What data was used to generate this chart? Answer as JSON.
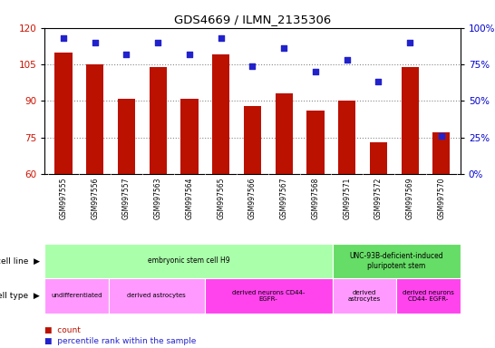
{
  "title": "GDS4669 / ILMN_2135306",
  "samples": [
    "GSM997555",
    "GSM997556",
    "GSM997557",
    "GSM997563",
    "GSM997564",
    "GSM997565",
    "GSM997566",
    "GSM997567",
    "GSM997568",
    "GSM997571",
    "GSM997572",
    "GSM997569",
    "GSM997570"
  ],
  "counts": [
    110,
    105,
    91,
    104,
    91,
    109,
    88,
    93,
    86,
    90,
    73,
    104,
    77
  ],
  "percentile_ranks_pct": [
    93,
    90,
    82,
    90,
    82,
    93,
    74,
    86,
    70,
    78,
    63,
    90,
    26
  ],
  "ylim_left": [
    60,
    120
  ],
  "ylim_right": [
    0,
    100
  ],
  "yticks_left": [
    60,
    75,
    90,
    105,
    120
  ],
  "yticks_right": [
    0,
    25,
    50,
    75,
    100
  ],
  "bar_color": "#BB1100",
  "dot_color": "#2222CC",
  "grid_color": "#888888",
  "plot_bg_color": "#FFFFFF",
  "xticklabel_bg": "#CCCCCC",
  "cell_line_groups": [
    {
      "label": "embryonic stem cell H9",
      "start": 0,
      "end": 9,
      "color": "#AAFFAA"
    },
    {
      "label": "UNC-93B-deficient-induced\npluripotent stem",
      "start": 9,
      "end": 13,
      "color": "#66DD66"
    }
  ],
  "cell_type_groups": [
    {
      "label": "undifferentiated",
      "start": 0,
      "end": 2,
      "color": "#FF99FF"
    },
    {
      "label": "derived astrocytes",
      "start": 2,
      "end": 5,
      "color": "#FF99FF"
    },
    {
      "label": "derived neurons CD44-\nEGFR-",
      "start": 5,
      "end": 9,
      "color": "#FF44EE"
    },
    {
      "label": "derived\nastrocytes",
      "start": 9,
      "end": 11,
      "color": "#FF99FF"
    },
    {
      "label": "derived neurons\nCD44- EGFR-",
      "start": 11,
      "end": 13,
      "color": "#FF44EE"
    }
  ],
  "bar_width": 0.55,
  "dot_size": 18,
  "left_tick_color": "#CC1100",
  "right_tick_color": "#0000CC",
  "legend_square_size": 8
}
